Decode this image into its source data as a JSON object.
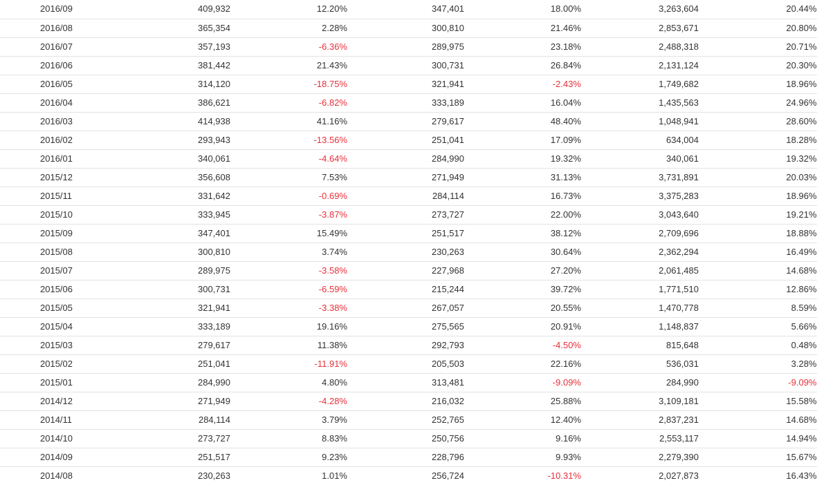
{
  "table": {
    "rows": [
      {
        "period": "2016/09",
        "c1": "409,932",
        "c2": "12.20%",
        "c3": "347,401",
        "c4": "18.00%",
        "c5": "3,263,604",
        "c6": "20.44%"
      },
      {
        "period": "2016/08",
        "c1": "365,354",
        "c2": "2.28%",
        "c3": "300,810",
        "c4": "21.46%",
        "c5": "2,853,671",
        "c6": "20.80%"
      },
      {
        "period": "2016/07",
        "c1": "357,193",
        "c2": "-6.36%",
        "c3": "289,975",
        "c4": "23.18%",
        "c5": "2,488,318",
        "c6": "20.71%"
      },
      {
        "period": "2016/06",
        "c1": "381,442",
        "c2": "21.43%",
        "c3": "300,731",
        "c4": "26.84%",
        "c5": "2,131,124",
        "c6": "20.30%"
      },
      {
        "period": "2016/05",
        "c1": "314,120",
        "c2": "-18.75%",
        "c3": "321,941",
        "c4": "-2.43%",
        "c5": "1,749,682",
        "c6": "18.96%"
      },
      {
        "period": "2016/04",
        "c1": "386,621",
        "c2": "-6.82%",
        "c3": "333,189",
        "c4": "16.04%",
        "c5": "1,435,563",
        "c6": "24.96%"
      },
      {
        "period": "2016/03",
        "c1": "414,938",
        "c2": "41.16%",
        "c3": "279,617",
        "c4": "48.40%",
        "c5": "1,048,941",
        "c6": "28.60%"
      },
      {
        "period": "2016/02",
        "c1": "293,943",
        "c2": "-13.56%",
        "c3": "251,041",
        "c4": "17.09%",
        "c5": "634,004",
        "c6": "18.28%"
      },
      {
        "period": "2016/01",
        "c1": "340,061",
        "c2": "-4.64%",
        "c3": "284,990",
        "c4": "19.32%",
        "c5": "340,061",
        "c6": "19.32%"
      },
      {
        "period": "2015/12",
        "c1": "356,608",
        "c2": "7.53%",
        "c3": "271,949",
        "c4": "31.13%",
        "c5": "3,731,891",
        "c6": "20.03%"
      },
      {
        "period": "2015/11",
        "c1": "331,642",
        "c2": "-0.69%",
        "c3": "284,114",
        "c4": "16.73%",
        "c5": "3,375,283",
        "c6": "18.96%"
      },
      {
        "period": "2015/10",
        "c1": "333,945",
        "c2": "-3.87%",
        "c3": "273,727",
        "c4": "22.00%",
        "c5": "3,043,640",
        "c6": "19.21%"
      },
      {
        "period": "2015/09",
        "c1": "347,401",
        "c2": "15.49%",
        "c3": "251,517",
        "c4": "38.12%",
        "c5": "2,709,696",
        "c6": "18.88%"
      },
      {
        "period": "2015/08",
        "c1": "300,810",
        "c2": "3.74%",
        "c3": "230,263",
        "c4": "30.64%",
        "c5": "2,362,294",
        "c6": "16.49%"
      },
      {
        "period": "2015/07",
        "c1": "289,975",
        "c2": "-3.58%",
        "c3": "227,968",
        "c4": "27.20%",
        "c5": "2,061,485",
        "c6": "14.68%"
      },
      {
        "period": "2015/06",
        "c1": "300,731",
        "c2": "-6.59%",
        "c3": "215,244",
        "c4": "39.72%",
        "c5": "1,771,510",
        "c6": "12.86%"
      },
      {
        "period": "2015/05",
        "c1": "321,941",
        "c2": "-3.38%",
        "c3": "267,057",
        "c4": "20.55%",
        "c5": "1,470,778",
        "c6": "8.59%"
      },
      {
        "period": "2015/04",
        "c1": "333,189",
        "c2": "19.16%",
        "c3": "275,565",
        "c4": "20.91%",
        "c5": "1,148,837",
        "c6": "5.66%"
      },
      {
        "period": "2015/03",
        "c1": "279,617",
        "c2": "11.38%",
        "c3": "292,793",
        "c4": "-4.50%",
        "c5": "815,648",
        "c6": "0.48%"
      },
      {
        "period": "2015/02",
        "c1": "251,041",
        "c2": "-11.91%",
        "c3": "205,503",
        "c4": "22.16%",
        "c5": "536,031",
        "c6": "3.28%"
      },
      {
        "period": "2015/01",
        "c1": "284,990",
        "c2": "4.80%",
        "c3": "313,481",
        "c4": "-9.09%",
        "c5": "284,990",
        "c6": "-9.09%"
      },
      {
        "period": "2014/12",
        "c1": "271,949",
        "c2": "-4.28%",
        "c3": "216,032",
        "c4": "25.88%",
        "c5": "3,109,181",
        "c6": "15.58%"
      },
      {
        "period": "2014/11",
        "c1": "284,114",
        "c2": "3.79%",
        "c3": "252,765",
        "c4": "12.40%",
        "c5": "2,837,231",
        "c6": "14.68%"
      },
      {
        "period": "2014/10",
        "c1": "273,727",
        "c2": "8.83%",
        "c3": "250,756",
        "c4": "9.16%",
        "c5": "2,553,117",
        "c6": "14.94%"
      },
      {
        "period": "2014/09",
        "c1": "251,517",
        "c2": "9.23%",
        "c3": "228,796",
        "c4": "9.93%",
        "c5": "2,279,390",
        "c6": "15.67%"
      },
      {
        "period": "2014/08",
        "c1": "230,263",
        "c2": "1.01%",
        "c3": "256,724",
        "c4": "-10.31%",
        "c5": "2,027,873",
        "c6": "16.43%"
      }
    ]
  },
  "colors": {
    "negative": "#e8303a",
    "text": "#333333",
    "row_border": "#e2e2e2"
  }
}
